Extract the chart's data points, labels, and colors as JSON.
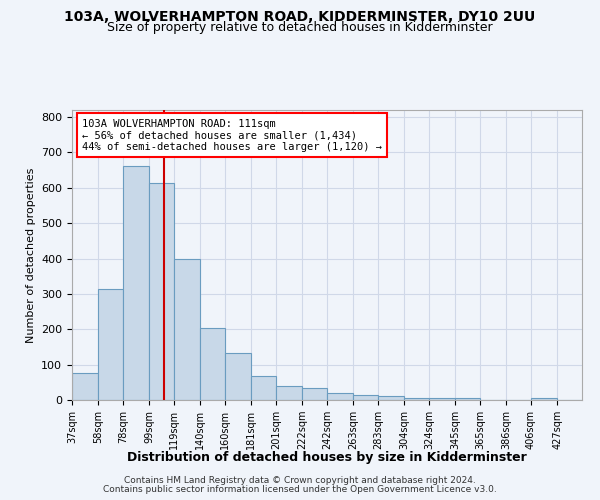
{
  "title1": "103A, WOLVERHAMPTON ROAD, KIDDERMINSTER, DY10 2UU",
  "title2": "Size of property relative to detached houses in Kidderminster",
  "xlabel": "Distribution of detached houses by size in Kidderminster",
  "ylabel": "Number of detached properties",
  "footer1": "Contains HM Land Registry data © Crown copyright and database right 2024.",
  "footer2": "Contains public sector information licensed under the Open Government Licence v3.0.",
  "annotation_line1": "103A WOLVERHAMPTON ROAD: 111sqm",
  "annotation_line2": "← 56% of detached houses are smaller (1,434)",
  "annotation_line3": "44% of semi-detached houses are larger (1,120) →",
  "bar_color": "#c8d8e8",
  "bar_edge_color": "#6a9cc0",
  "grid_color": "#d0d8e8",
  "vline_color": "#cc0000",
  "vline_x": 111,
  "bins": [
    37,
    58,
    78,
    99,
    119,
    140,
    160,
    181,
    201,
    222,
    242,
    263,
    283,
    304,
    324,
    345,
    365,
    386,
    406,
    427,
    447
  ],
  "bar_heights": [
    75,
    313,
    663,
    615,
    398,
    204,
    133,
    68,
    40,
    33,
    20,
    15,
    11,
    5,
    5,
    5,
    0,
    0,
    5,
    0
  ],
  "ylim": [
    0,
    820
  ],
  "yticks": [
    0,
    100,
    200,
    300,
    400,
    500,
    600,
    700,
    800
  ],
  "bg_color": "#f0f4fa"
}
